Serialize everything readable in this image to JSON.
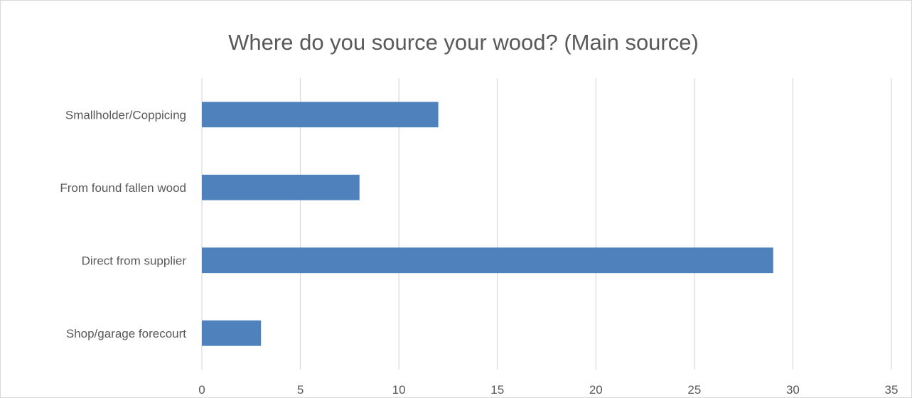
{
  "chart_data": {
    "type": "bar",
    "orientation": "horizontal",
    "title": "Where do you source your wood? (Main source)",
    "categories": [
      "Smallholder/Coppicing",
      "From found fallen wood",
      "Direct from supplier",
      "Shop/garage forecourt"
    ],
    "values": [
      12,
      8,
      29,
      3
    ],
    "xlim": [
      0,
      35
    ],
    "xticks": [
      "0",
      "5",
      "10",
      "15",
      "20",
      "25",
      "30",
      "35"
    ],
    "grid": true,
    "legend": "none",
    "bar_color": "#4f81bd",
    "grid_color": "#d9d9d9",
    "text_color": "#595959"
  }
}
